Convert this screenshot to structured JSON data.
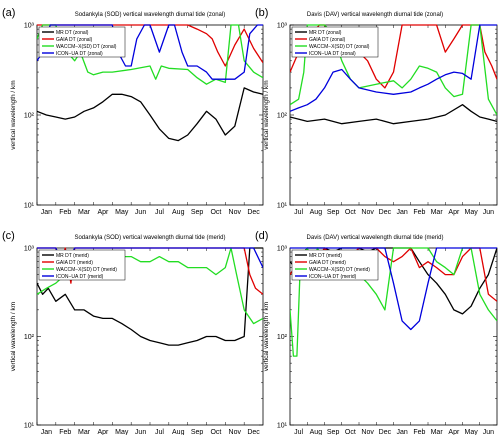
{
  "panels": [
    {
      "letter": "(a)",
      "title": "Sodankyla (SOD) vertical wavelength diurnal tide (zonal)",
      "ylabel": "vertical wavelength / km",
      "xticks": [
        "Jan",
        "Feb",
        "Mar",
        "Apr",
        "May",
        "Jun",
        "Jul",
        "Aug",
        "Sep",
        "Oct",
        "Nov",
        "Dec"
      ],
      "yticks": [
        "10¹",
        "10²",
        "10³"
      ],
      "legend": [
        "MR DT (zonal)",
        "GAIA DT (zonal)",
        "WACCM−X(SD) DT (zonal)",
        "ICON−UA DT (zonal)"
      ]
    },
    {
      "letter": "(b)",
      "title": "Davis (DAV) vertical wavelength diurnal tide (zonal)",
      "ylabel": "vertical wavelength / km",
      "xticks": [
        "Jul",
        "Aug",
        "Sep",
        "Oct",
        "Nov",
        "Dec",
        "Jan",
        "Feb",
        "Mar",
        "Apr",
        "May",
        "Jun"
      ],
      "yticks": [
        "10¹",
        "10²",
        "10³"
      ],
      "legend": [
        "MR DT (zonal)",
        "GAIA DT (zonal)",
        "WACCM−X(SD) DT (zonal)",
        "ICON−UA DT (zonal)"
      ]
    },
    {
      "letter": "(c)",
      "title": "Sodankyla (SOD) vertical wavelength diurnal tide (merid)",
      "ylabel": "vertical wavelength / km",
      "xticks": [
        "Jan",
        "Feb",
        "Mar",
        "Apr",
        "May",
        "Jun",
        "Jul",
        "Aug",
        "Sep",
        "Oct",
        "Nov",
        "Dec"
      ],
      "yticks": [
        "10¹",
        "10²",
        "10³"
      ],
      "legend": [
        "MR DT (merid)",
        "GAIA DT (merid)",
        "WACCM−X(SD) DT (merid)",
        "ICON−UA DT (merid)"
      ]
    },
    {
      "letter": "(d)",
      "title": "Davis (DAV) vertical wavelength diurnal tide (merid)",
      "ylabel": "vertical wavelength / km",
      "xticks": [
        "Jul",
        "Aug",
        "Sep",
        "Oct",
        "Nov",
        "Dec",
        "Jan",
        "Feb",
        "Mar",
        "Apr",
        "May",
        "Jun"
      ],
      "yticks": [
        "10¹",
        "10²",
        "10³"
      ],
      "legend": [
        "MR DT (merid)",
        "GAIA DT (merid)",
        "WACCM−X(SD) DT (merid)",
        "ICON−UA DT (merid)"
      ]
    }
  ],
  "colors": {
    "mr": "#000000",
    "gaia": "#e00000",
    "waccm": "#22dd22",
    "icon": "#0000dd"
  },
  "chart_data": [
    {
      "type": "line",
      "yscale": "log",
      "ylim": [
        10,
        1000
      ],
      "xlim": [
        0,
        12
      ],
      "title": "Sodankyla (SOD) vertical wavelength diurnal tide (zonal)",
      "ylabel": "vertical wavelength / km",
      "series": [
        {
          "name": "MR DT (zonal)",
          "x": [
            0,
            0.5,
            1,
            1.5,
            2,
            2.5,
            3,
            3.5,
            4,
            4.5,
            5,
            5.5,
            6,
            6.5,
            7,
            7.5,
            8,
            8.5,
            9,
            9.5,
            10,
            10.5,
            11,
            11.5,
            12
          ],
          "y": [
            110,
            100,
            95,
            90,
            95,
            110,
            120,
            140,
            170,
            170,
            160,
            140,
            100,
            70,
            55,
            52,
            60,
            80,
            110,
            90,
            60,
            75,
            200,
            180,
            170
          ]
        },
        {
          "name": "GAIA DT (zonal)",
          "x": [
            0,
            1,
            2,
            3,
            4,
            5,
            6,
            7,
            8,
            8.5,
            9,
            9.3,
            9.6,
            10,
            10.5,
            11,
            11.5,
            12
          ],
          "y": [
            1000,
            1000,
            1000,
            1000,
            1000,
            1000,
            1000,
            1000,
            1000,
            900,
            800,
            700,
            500,
            350,
            600,
            900,
            550,
            380
          ]
        },
        {
          "name": "WACCM−X(SD) DT (zonal)",
          "x": [
            0,
            0.3,
            0.7,
            1,
            1.3,
            1.6,
            2,
            2.3,
            2.7,
            3,
            3.5,
            4,
            5,
            6,
            6.3,
            6.6,
            7,
            8,
            8.5,
            9,
            9.5,
            10,
            10.3,
            10.7,
            11,
            11.5,
            12
          ],
          "y": [
            700,
            1000,
            1000,
            1000,
            600,
            500,
            400,
            500,
            300,
            280,
            300,
            300,
            320,
            350,
            250,
            350,
            330,
            320,
            260,
            220,
            250,
            230,
            1000,
            1000,
            400,
            300,
            260
          ]
        },
        {
          "name": "ICON−UA DT (zonal)",
          "x": [
            0,
            0.3,
            0.7,
            1,
            1.5,
            2,
            3,
            4,
            4.3,
            4.7,
            5,
            5.3,
            5.7,
            6,
            6.5,
            7,
            7.3,
            7.7,
            8,
            8.5,
            9,
            9.3,
            9.7,
            10,
            10.5,
            11,
            11.3,
            11.7,
            12
          ],
          "y": [
            400,
            500,
            1000,
            1000,
            1000,
            1000,
            1000,
            1000,
            500,
            350,
            350,
            700,
            1000,
            1000,
            500,
            1000,
            1000,
            500,
            350,
            350,
            300,
            250,
            250,
            250,
            250,
            300,
            800,
            1000,
            1000
          ]
        }
      ]
    },
    {
      "type": "line",
      "yscale": "log",
      "ylim": [
        10,
        1000
      ],
      "xlim": [
        0,
        12
      ],
      "title": "Davis (DAV) vertical wavelength diurnal tide (zonal)",
      "ylabel": "vertical wavelength / km",
      "series": [
        {
          "name": "MR DT (zonal)",
          "x": [
            0,
            1,
            2,
            3,
            4,
            5,
            6,
            7,
            8,
            9,
            10,
            10.5,
            11,
            11.5,
            12
          ],
          "y": [
            95,
            85,
            90,
            80,
            85,
            90,
            80,
            85,
            90,
            100,
            130,
            110,
            95,
            90,
            85
          ]
        },
        {
          "name": "GAIA DT (zonal)",
          "x": [
            0,
            0.5,
            1,
            1.3,
            1.7,
            2,
            2.5,
            3,
            3.5,
            4,
            4.5,
            5,
            5.5,
            6,
            6.5,
            7,
            7.5,
            8,
            8.5,
            9,
            9.5,
            10,
            10.5,
            11,
            11.3,
            11.7,
            12
          ],
          "y": [
            300,
            500,
            700,
            800,
            1000,
            1000,
            700,
            500,
            600,
            500,
            400,
            250,
            200,
            300,
            1000,
            1000,
            1000,
            1000,
            1000,
            500,
            700,
            1000,
            1000,
            1000,
            500,
            350,
            250
          ]
        },
        {
          "name": "WACCM−X(SD) DT (zonal)",
          "x": [
            0,
            0.5,
            0.8,
            1,
            1.5,
            2,
            2.5,
            3,
            3.5,
            4,
            5,
            6,
            6.5,
            7,
            7.5,
            8,
            8.5,
            9,
            9.5,
            10,
            10.5,
            11,
            11.5,
            12
          ],
          "y": [
            130,
            150,
            300,
            1000,
            1000,
            1000,
            800,
            400,
            250,
            200,
            220,
            240,
            200,
            250,
            350,
            330,
            300,
            200,
            160,
            170,
            1000,
            1000,
            150,
            100
          ]
        },
        {
          "name": "ICON−UA DT (zonal)",
          "x": [
            0,
            0.5,
            1,
            1.5,
            2,
            2.5,
            3,
            3.5,
            4,
            5,
            6,
            7,
            7.5,
            8,
            8.5,
            9,
            9.5,
            10,
            10.5,
            11,
            11.5,
            12
          ],
          "y": [
            110,
            120,
            130,
            150,
            200,
            300,
            320,
            250,
            200,
            180,
            170,
            180,
            200,
            220,
            250,
            280,
            300,
            290,
            250,
            1000,
            1000,
            1000
          ]
        }
      ]
    },
    {
      "type": "line",
      "yscale": "log",
      "ylim": [
        10,
        1000
      ],
      "xlim": [
        0,
        12
      ],
      "title": "Sodankyla (SOD) vertical wavelength diurnal tide (merid)",
      "ylabel": "vertical wavelength / km",
      "series": [
        {
          "name": "MR DT (merid)",
          "x": [
            0,
            0.3,
            0.6,
            1,
            1.5,
            2,
            2.5,
            3,
            3.5,
            4,
            4.5,
            5,
            5.5,
            6,
            6.5,
            7,
            7.5,
            8,
            8.5,
            9,
            9.5,
            10,
            10.5,
            11,
            11.3,
            11.6,
            12
          ],
          "y": [
            400,
            300,
            350,
            250,
            300,
            200,
            200,
            170,
            160,
            160,
            140,
            120,
            100,
            90,
            85,
            80,
            80,
            85,
            90,
            100,
            100,
            90,
            90,
            100,
            1000,
            1000,
            1000
          ]
        },
        {
          "name": "GAIA DT (merid)",
          "x": [
            0,
            1,
            1.2,
            1.5,
            1.8,
            2,
            3,
            4,
            5,
            6,
            7,
            8,
            9,
            10,
            11,
            11.3,
            11.6,
            12
          ],
          "y": [
            1000,
            1000,
            600,
            1000,
            400,
            1000,
            1000,
            1000,
            1000,
            1000,
            1000,
            1000,
            1000,
            1000,
            1000,
            500,
            350,
            300
          ]
        },
        {
          "name": "WACCM−X(SD) DT (merid)",
          "x": [
            0,
            0.5,
            1,
            1.5,
            2,
            2.5,
            3,
            3.5,
            4,
            4.5,
            5,
            5.5,
            6,
            6.5,
            7,
            7.5,
            8,
            8.5,
            9,
            9.5,
            10,
            10.3,
            10.6,
            11,
            11.5,
            12
          ],
          "y": [
            300,
            350,
            400,
            500,
            700,
            800,
            800,
            700,
            700,
            800,
            800,
            700,
            700,
            800,
            700,
            700,
            600,
            600,
            600,
            500,
            600,
            1000,
            500,
            200,
            140,
            160
          ]
        },
        {
          "name": "ICON−UA DT (merid)",
          "x": [
            0,
            0.5,
            1,
            1.5,
            2,
            2.5,
            3,
            3.5,
            4,
            4.5,
            5,
            5.5,
            6,
            6.5,
            7,
            7.5,
            8,
            8.5,
            9,
            9.5,
            10,
            10.5,
            11,
            11.5,
            12
          ],
          "y": [
            1000,
            1000,
            1000,
            600,
            1000,
            1000,
            1000,
            1000,
            1000,
            1000,
            1000,
            1000,
            1000,
            1000,
            1000,
            1000,
            1000,
            1000,
            1000,
            1000,
            1000,
            1000,
            1000,
            1000,
            600
          ]
        }
      ]
    },
    {
      "type": "line",
      "yscale": "log",
      "ylim": [
        10,
        1000
      ],
      "xlim": [
        0,
        12
      ],
      "title": "Davis (DAV) vertical wavelength diurnal tide (merid)",
      "ylabel": "vertical wavelength / km",
      "series": [
        {
          "name": "MR DT (merid)",
          "x": [
            0,
            0.3,
            0.6,
            1,
            1.5,
            2,
            2.5,
            3,
            3.5,
            4,
            4.5,
            5,
            5.5,
            6,
            6.5,
            7,
            7.5,
            8,
            8.5,
            9,
            9.5,
            10,
            10.5,
            11,
            11.5,
            12
          ],
          "y": [
            700,
            600,
            800,
            1000,
            1000,
            1000,
            900,
            1000,
            1000,
            1000,
            900,
            1000,
            1000,
            1000,
            1000,
            1000,
            700,
            500,
            400,
            300,
            200,
            180,
            220,
            350,
            500,
            1000
          ]
        },
        {
          "name": "GAIA DT (merid)",
          "x": [
            0,
            0.5,
            1,
            1.5,
            2,
            2.5,
            3,
            3.5,
            4,
            4.5,
            5,
            5.5,
            6,
            6.5,
            7,
            7.5,
            8,
            8.5,
            9,
            9.5,
            10,
            10.5,
            11,
            11.5,
            12
          ],
          "y": [
            500,
            700,
            800,
            700,
            1000,
            800,
            700,
            800,
            1000,
            1000,
            1000,
            800,
            700,
            800,
            1000,
            600,
            700,
            600,
            500,
            500,
            800,
            1000,
            1000,
            300,
            250
          ]
        },
        {
          "name": "WACCM−X(SD) DT (merid)",
          "x": [
            0,
            0.2,
            0.4,
            0.6,
            1,
            1.3,
            1.6,
            2,
            2.5,
            3,
            3.5,
            4,
            4.5,
            5,
            5.5,
            6,
            7,
            8,
            8.5,
            9,
            9.5,
            10,
            10.5,
            11,
            11.5,
            12
          ],
          "y": [
            200,
            60,
            60,
            700,
            1000,
            700,
            1000,
            600,
            500,
            500,
            600,
            500,
            400,
            300,
            200,
            1000,
            1000,
            1000,
            700,
            600,
            500,
            1000,
            1000,
            300,
            200,
            150
          ]
        },
        {
          "name": "ICON−UA DT (merid)",
          "x": [
            0,
            0.5,
            1,
            1.5,
            2,
            2.5,
            3,
            3.5,
            4,
            4.5,
            5,
            5.5,
            6,
            6.5,
            7,
            7.5,
            8,
            8.5,
            9,
            9.5,
            10,
            10.5,
            11,
            11.5,
            12
          ],
          "y": [
            1000,
            1000,
            1000,
            1000,
            1000,
            1000,
            1000,
            1000,
            1000,
            1000,
            1000,
            1000,
            400,
            150,
            120,
            150,
            400,
            1000,
            1000,
            1000,
            1000,
            1000,
            1000,
            1000,
            1000
          ]
        }
      ]
    }
  ]
}
